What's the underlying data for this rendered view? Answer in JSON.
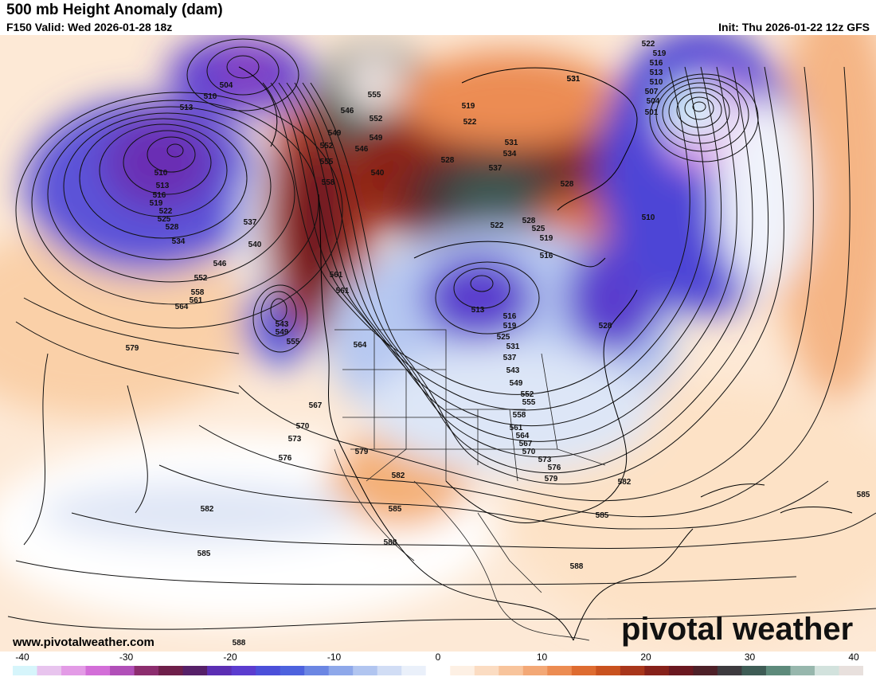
{
  "header": {
    "title": "500 mb Height Anomaly (dam)",
    "valid": "F150 Valid: Wed 2026-01-28 18z",
    "init": "Init: Thu 2026-01-22 12z GFS"
  },
  "footer": {
    "website": "www.pivotalweather.com",
    "logo": "pivotal weather"
  },
  "colorbar": {
    "ticks": [
      "-40",
      "-30",
      "-20",
      "-10",
      "0",
      "10",
      "20",
      "30",
      "40"
    ],
    "range": [
      -40,
      40
    ],
    "colors": [
      "#d6f5fb",
      "#e8c4ee",
      "#e39be6",
      "#d36ed8",
      "#b14fb8",
      "#8c2d6e",
      "#6e1f4a",
      "#562068",
      "#5b2eb3",
      "#5b3ccf",
      "#4b4fd9",
      "#4d62de",
      "#6b86e3",
      "#8ea8ea",
      "#b1c5f0",
      "#d1ddf5",
      "#eaf0fa",
      "#ffffff",
      "#fdf0e4",
      "#fbdcc2",
      "#f8c49c",
      "#f3a876",
      "#ec8c52",
      "#de6c31",
      "#c9521f",
      "#a8361b",
      "#86211a",
      "#6a1820",
      "#4d2028",
      "#3d3a3e",
      "#3e5c55",
      "#5d8a7b",
      "#97b7ad",
      "#d2e2dd",
      "#e8e0dd"
    ]
  },
  "contour_labels": [
    {
      "text": "504"
    },
    {
      "text": "510"
    },
    {
      "text": "513"
    },
    {
      "text": "510"
    },
    {
      "text": "513"
    },
    {
      "text": "516"
    },
    {
      "text": "519"
    },
    {
      "text": "522"
    },
    {
      "text": "525"
    },
    {
      "text": "528"
    },
    {
      "text": "534"
    },
    {
      "text": "537"
    },
    {
      "text": "540"
    },
    {
      "text": "546"
    },
    {
      "text": "552"
    },
    {
      "text": "558"
    },
    {
      "text": "561"
    },
    {
      "text": "564"
    },
    {
      "text": "579"
    },
    {
      "text": "543"
    },
    {
      "text": "549"
    },
    {
      "text": "555"
    },
    {
      "text": "555"
    },
    {
      "text": "552"
    },
    {
      "text": "549"
    },
    {
      "text": "546"
    },
    {
      "text": "546"
    },
    {
      "text": "549"
    },
    {
      "text": "552"
    },
    {
      "text": "555"
    },
    {
      "text": "558"
    },
    {
      "text": "540"
    },
    {
      "text": "561"
    },
    {
      "text": "561"
    },
    {
      "text": "564"
    },
    {
      "text": "567"
    },
    {
      "text": "570"
    },
    {
      "text": "573"
    },
    {
      "text": "576"
    },
    {
      "text": "579"
    },
    {
      "text": "582"
    },
    {
      "text": "585"
    },
    {
      "text": "588"
    },
    {
      "text": "582"
    },
    {
      "text": "585"
    },
    {
      "text": "588"
    },
    {
      "text": "519"
    },
    {
      "text": "522"
    },
    {
      "text": "528"
    },
    {
      "text": "531"
    },
    {
      "text": "531"
    },
    {
      "text": "534"
    },
    {
      "text": "537"
    },
    {
      "text": "528"
    },
    {
      "text": "522"
    },
    {
      "text": "525"
    },
    {
      "text": "519"
    },
    {
      "text": "516"
    },
    {
      "text": "513"
    },
    {
      "text": "516"
    },
    {
      "text": "519"
    },
    {
      "text": "525"
    },
    {
      "text": "531"
    },
    {
      "text": "537"
    },
    {
      "text": "543"
    },
    {
      "text": "549"
    },
    {
      "text": "552"
    },
    {
      "text": "555"
    },
    {
      "text": "558"
    },
    {
      "text": "561"
    },
    {
      "text": "564"
    },
    {
      "text": "567"
    },
    {
      "text": "570"
    },
    {
      "text": "573"
    },
    {
      "text": "576"
    },
    {
      "text": "579"
    },
    {
      "text": "582"
    },
    {
      "text": "585"
    },
    {
      "text": "588"
    },
    {
      "text": "585"
    },
    {
      "text": "528"
    },
    {
      "text": "510"
    },
    {
      "text": "522"
    },
    {
      "text": "519"
    },
    {
      "text": "516"
    },
    {
      "text": "513"
    },
    {
      "text": "510"
    },
    {
      "text": "507"
    },
    {
      "text": "504"
    },
    {
      "text": "501"
    },
    {
      "text": "528"
    },
    {
      "text": "531"
    }
  ]
}
